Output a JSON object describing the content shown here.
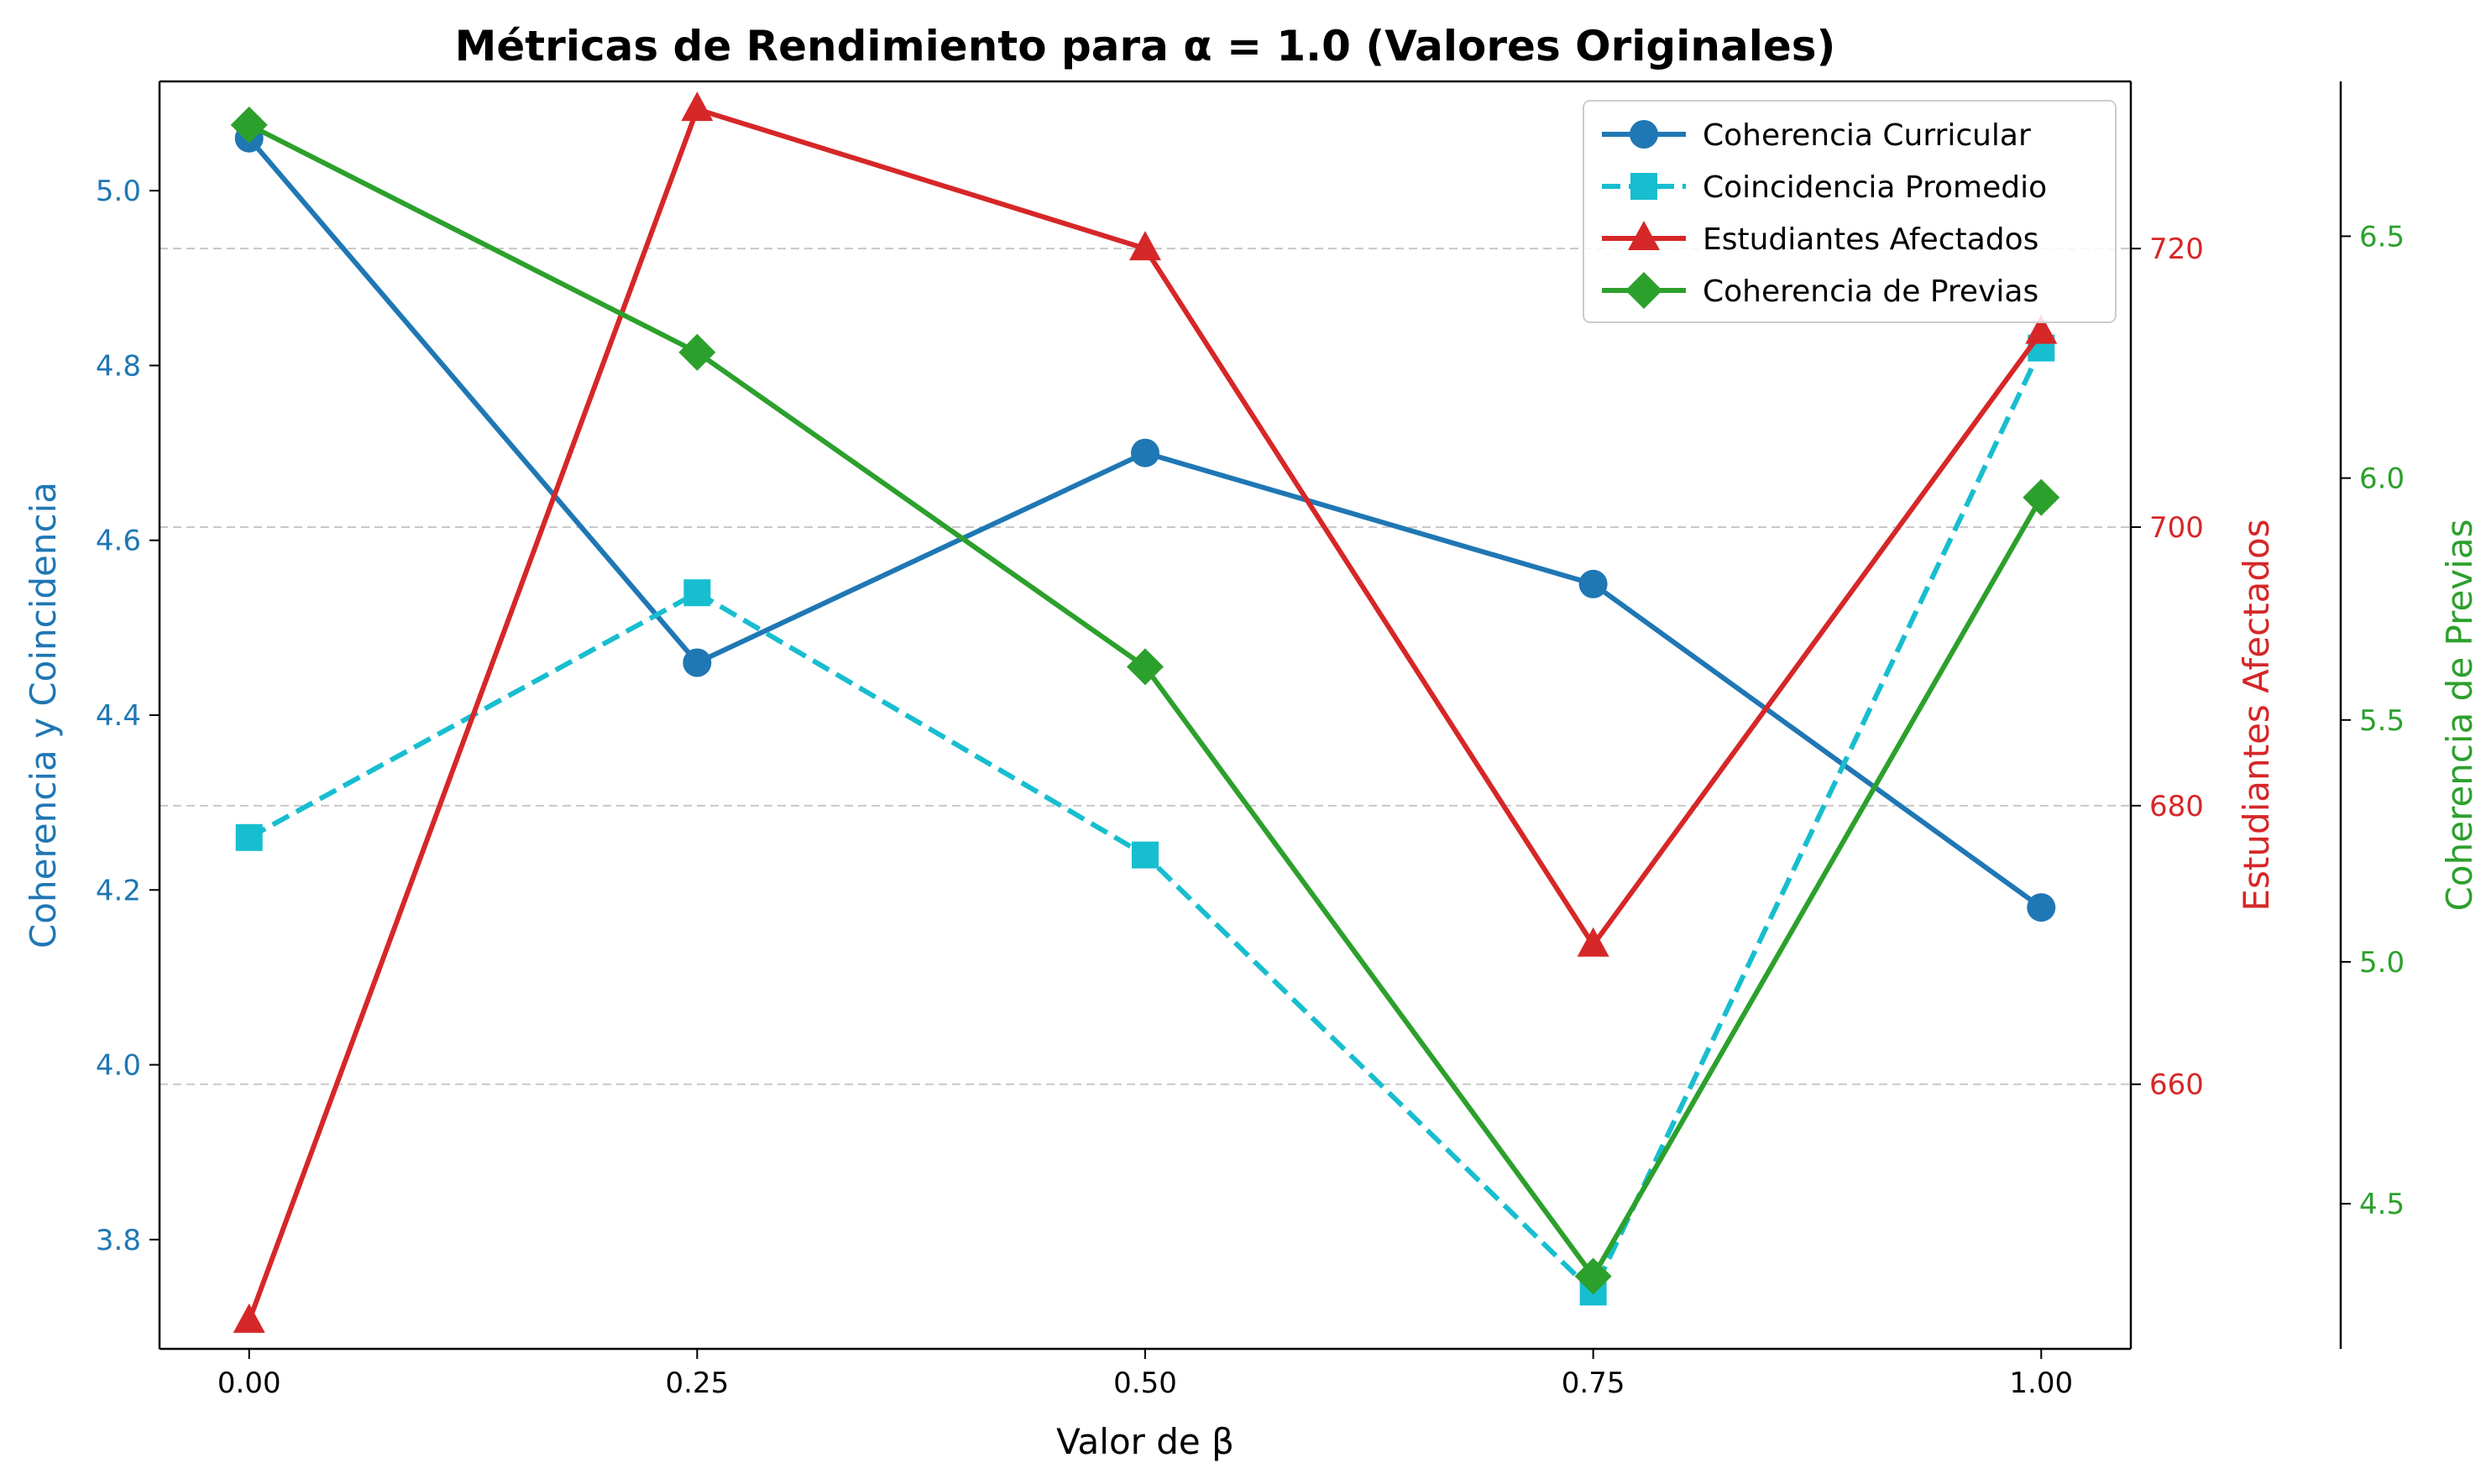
{
  "chart_data": {
    "type": "line",
    "title": "Métricas de Rendimiento para α = 1.0 (Valores Originales)",
    "xlabel": "Valor de β",
    "x": [
      0.0,
      0.25,
      0.5,
      0.75,
      1.0
    ],
    "x_tick_labels": [
      "0.00",
      "0.25",
      "0.50",
      "0.75",
      "1.00"
    ],
    "xlim": [
      -0.05,
      1.05
    ],
    "grid": "horizontal-dashed",
    "legend_position": "upper-right",
    "axes": {
      "left": {
        "label": "Coherencia y Coincidencia",
        "color": "#1f77b4",
        "ylim": [
          3.675,
          5.125
        ],
        "ticks": [
          3.8,
          4.0,
          4.2,
          4.4,
          4.6,
          4.8,
          5.0
        ],
        "tick_labels": [
          "3.8",
          "4.0",
          "4.2",
          "4.4",
          "4.6",
          "4.8",
          "5.0"
        ]
      },
      "right1": {
        "label": "Estudiantes Afectados",
        "color": "#d62728",
        "ylim": [
          641,
          732
        ],
        "ticks": [
          660,
          680,
          700,
          720
        ],
        "tick_labels": [
          "660",
          "680",
          "700",
          "720"
        ]
      },
      "right2": {
        "label": "Coherencia de Previas",
        "color": "#2ca02c",
        "ylim": [
          4.2,
          6.82
        ],
        "ticks": [
          4.5,
          5.0,
          5.5,
          6.0,
          6.5
        ],
        "tick_labels": [
          "4.5",
          "5.0",
          "5.5",
          "6.0",
          "6.5"
        ]
      }
    },
    "series": [
      {
        "name": "Coherencia Curricular",
        "axis": "left",
        "color": "#1f77b4",
        "dash": "solid",
        "marker": "circle",
        "values": [
          5.06,
          4.46,
          4.7,
          4.55,
          4.18
        ]
      },
      {
        "name": "Coincidencia Promedio",
        "axis": "left",
        "color": "#17becf",
        "dash": "dashed",
        "marker": "square",
        "values": [
          4.26,
          4.54,
          4.24,
          3.74,
          4.82
        ]
      },
      {
        "name": "Estudiantes Afectados",
        "axis": "right1",
        "color": "#d62728",
        "dash": "solid",
        "marker": "triangle",
        "values": [
          643,
          730,
          720,
          670,
          714
        ]
      },
      {
        "name": "Coherencia de Previas",
        "axis": "right2",
        "color": "#2ca02c",
        "dash": "solid",
        "marker": "diamond",
        "values": [
          6.73,
          6.26,
          5.61,
          4.35,
          5.96
        ]
      }
    ]
  }
}
